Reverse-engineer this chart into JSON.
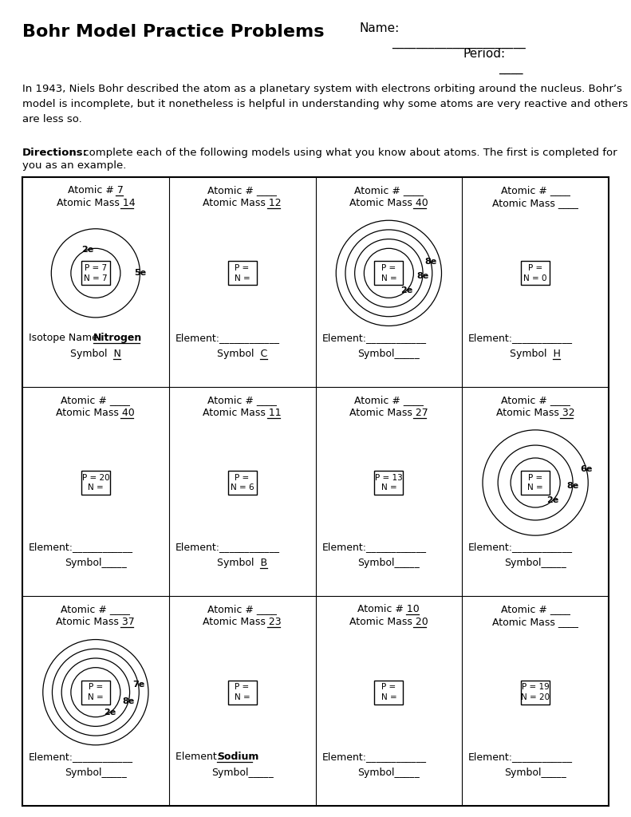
{
  "title": "Bohr Model Practice Problems",
  "bg_color": "#ffffff",
  "cells": [
    {
      "row": 0,
      "col": 0,
      "atomic_num": "7",
      "atomic_num_ul": true,
      "atomic_mass": "14",
      "atomic_mass_ul": true,
      "nucleus": "P = 7\nN = 7",
      "n_orbits": 2,
      "elec": [
        {
          "text": "2e",
          "ang": 250,
          "orb": 0
        },
        {
          "text": "5e",
          "ang": 0,
          "orb": 1
        }
      ],
      "bot1_pre": "Isotope Name: ",
      "bot1_val": "Nitrogen",
      "bot1_bold": true,
      "bot2_pre": "Symbol  ",
      "bot2_val": "N",
      "bot2_center": true
    },
    {
      "row": 0,
      "col": 1,
      "atomic_num": "____",
      "atomic_num_ul": false,
      "atomic_mass": "12",
      "atomic_mass_ul": true,
      "nucleus": "P =\nN =",
      "n_orbits": 0,
      "elec": [],
      "bot1_pre": "Element:",
      "bot1_val": "____________",
      "bot1_bold": false,
      "bot2_pre": "Symbol  ",
      "bot2_val": "C",
      "bot2_center": true
    },
    {
      "row": 0,
      "col": 2,
      "atomic_num": "____",
      "atomic_num_ul": false,
      "atomic_mass": "40",
      "atomic_mass_ul": true,
      "nucleus": "P =\nN =",
      "n_orbits": 4,
      "elec": [
        {
          "text": "2e",
          "ang": 45,
          "orb": 0
        },
        {
          "text": "8e",
          "ang": 5,
          "orb": 1
        },
        {
          "text": "8e",
          "ang": 345,
          "orb": 2
        }
      ],
      "bot1_pre": "Element:",
      "bot1_val": "____________",
      "bot1_bold": false,
      "bot2_pre": "Symbol",
      "bot2_val": "_____",
      "bot2_center": true
    },
    {
      "row": 0,
      "col": 3,
      "atomic_num": "____",
      "atomic_num_ul": false,
      "atomic_mass": "____",
      "atomic_mass_ul": false,
      "nucleus": "P =\nN = 0",
      "n_orbits": 0,
      "elec": [],
      "bot1_pre": "Element:",
      "bot1_val": "____________",
      "bot1_bold": false,
      "bot2_pre": "Symbol  ",
      "bot2_val": "H",
      "bot2_center": true
    },
    {
      "row": 1,
      "col": 0,
      "atomic_num": "____",
      "atomic_num_ul": false,
      "atomic_mass": "40",
      "atomic_mass_ul": true,
      "nucleus": "P = 20\nN =",
      "n_orbits": 0,
      "elec": [],
      "bot1_pre": "Element:",
      "bot1_val": "____________",
      "bot1_bold": false,
      "bot2_pre": "Symbol",
      "bot2_val": "_____",
      "bot2_center": false
    },
    {
      "row": 1,
      "col": 1,
      "atomic_num": "____",
      "atomic_num_ul": false,
      "atomic_mass": "11",
      "atomic_mass_ul": true,
      "nucleus": "P =\nN = 6",
      "n_orbits": 0,
      "elec": [],
      "bot1_pre": "Element:",
      "bot1_val": "____________",
      "bot1_bold": false,
      "bot2_pre": "Symbol  ",
      "bot2_val": "B",
      "bot2_center": true
    },
    {
      "row": 1,
      "col": 2,
      "atomic_num": "____",
      "atomic_num_ul": false,
      "atomic_mass": "27",
      "atomic_mass_ul": true,
      "nucleus": "P = 13\nN =",
      "n_orbits": 0,
      "elec": [],
      "bot1_pre": "Element:",
      "bot1_val": "____________",
      "bot1_bold": false,
      "bot2_pre": "Symbol",
      "bot2_val": "_____",
      "bot2_center": false
    },
    {
      "row": 1,
      "col": 3,
      "atomic_num": "____",
      "atomic_num_ul": false,
      "atomic_mass": "32",
      "atomic_mass_ul": true,
      "nucleus": "P =\nN =",
      "n_orbits": 3,
      "elec": [
        {
          "text": "2e",
          "ang": 45,
          "orb": 0
        },
        {
          "text": "8e",
          "ang": 5,
          "orb": 1
        },
        {
          "text": "6e",
          "ang": 345,
          "orb": 2
        }
      ],
      "bot1_pre": "Element:",
      "bot1_val": "____________",
      "bot1_bold": false,
      "bot2_pre": "Symbol",
      "bot2_val": "_____",
      "bot2_center": false
    },
    {
      "row": 2,
      "col": 0,
      "atomic_num": "____",
      "atomic_num_ul": false,
      "atomic_mass": "37",
      "atomic_mass_ul": true,
      "nucleus": "P =\nN =",
      "n_orbits": 4,
      "elec": [
        {
          "text": "2e",
          "ang": 55,
          "orb": 0
        },
        {
          "text": "8e",
          "ang": 15,
          "orb": 1
        },
        {
          "text": "7e",
          "ang": 350,
          "orb": 2
        }
      ],
      "bot1_pre": "Element:",
      "bot1_val": "____________",
      "bot1_bold": false,
      "bot2_pre": "Symbol",
      "bot2_val": "_____",
      "bot2_center": false
    },
    {
      "row": 2,
      "col": 1,
      "atomic_num": "____",
      "atomic_num_ul": false,
      "atomic_mass": "23",
      "atomic_mass_ul": true,
      "nucleus": "P =\nN =",
      "n_orbits": 0,
      "elec": [],
      "bot1_pre": "Element: ",
      "bot1_val": "Sodium",
      "bot1_bold": true,
      "bot2_pre": "Symbol",
      "bot2_val": "_____",
      "bot2_center": false
    },
    {
      "row": 2,
      "col": 2,
      "atomic_num": "10",
      "atomic_num_ul": true,
      "atomic_mass": "20",
      "atomic_mass_ul": true,
      "nucleus": "P =\nN =",
      "n_orbits": 0,
      "elec": [],
      "bot1_pre": "Element:",
      "bot1_val": "____________",
      "bot1_bold": false,
      "bot2_pre": "Symbol",
      "bot2_val": "_____",
      "bot2_center": false
    },
    {
      "row": 2,
      "col": 3,
      "atomic_num": "____",
      "atomic_num_ul": false,
      "atomic_mass": "____",
      "atomic_mass_ul": false,
      "nucleus": "P = 19\nN = 20",
      "n_orbits": 0,
      "elec": [],
      "bot1_pre": "Element:",
      "bot1_val": "____________",
      "bot1_bold": false,
      "bot2_pre": "Symbol",
      "bot2_val": "_____",
      "bot2_center": false
    }
  ]
}
